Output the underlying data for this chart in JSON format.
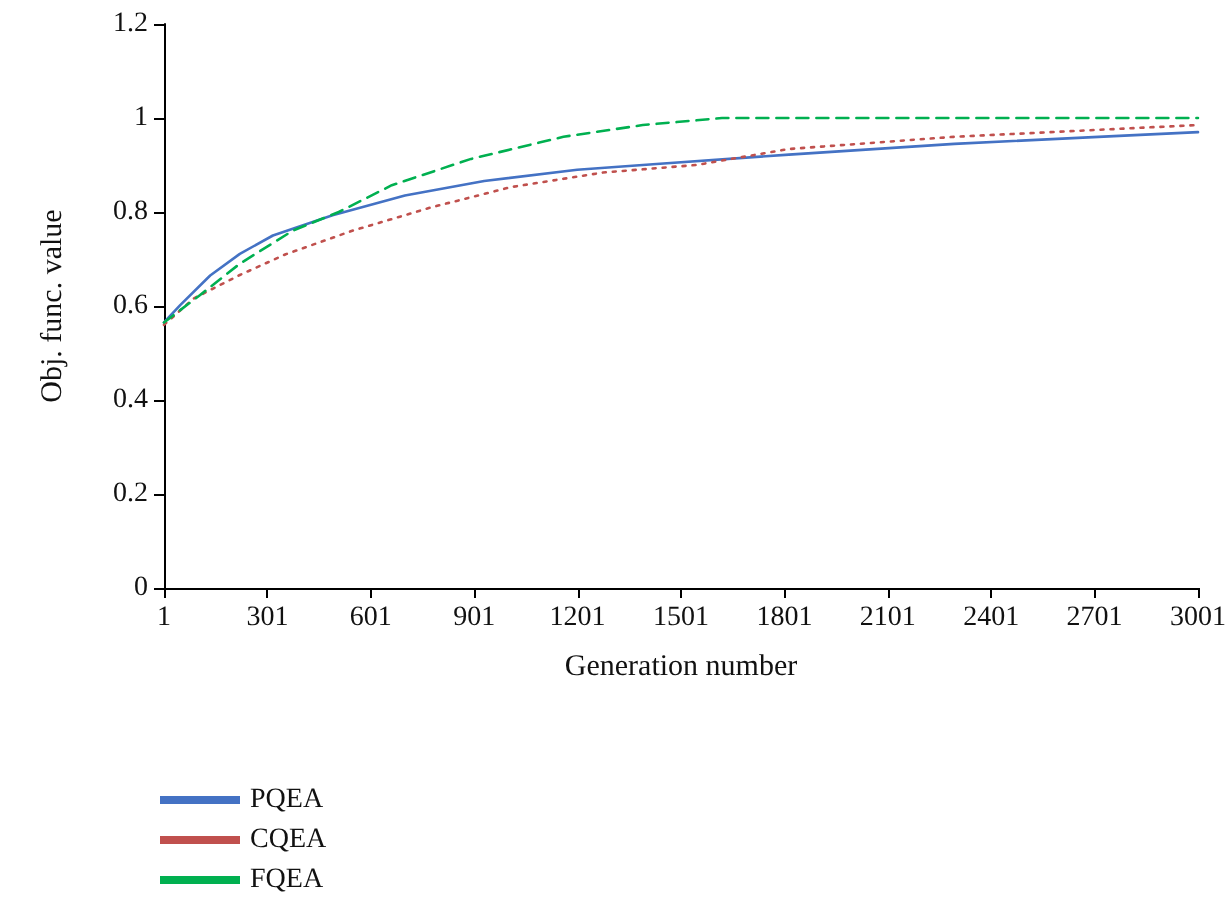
{
  "chart_data": {
    "type": "line",
    "xlabel": "Generation number",
    "ylabel": "Obj. func. value",
    "xlim": [
      1,
      3001
    ],
    "xticks": [
      1,
      301,
      601,
      901,
      1201,
      1501,
      1801,
      2101,
      2401,
      2701,
      3001
    ],
    "ylim": [
      0,
      1.2
    ],
    "yticks": [
      0,
      0.2,
      0.4,
      0.6,
      0.8,
      1,
      1.2
    ],
    "grid": false,
    "legend": "bottom left",
    "marker": "none",
    "series": [
      {
        "name": "PQEA",
        "color": "#4472c4",
        "line_style": "solid",
        "x": [
          1,
          48,
          135,
          221,
          317,
          490,
          700,
          930,
          1200,
          1430,
          1814,
          2294,
          2772,
          3001
        ],
        "values": [
          0.565,
          0.602,
          0.665,
          0.711,
          0.75,
          0.793,
          0.835,
          0.866,
          0.89,
          0.902,
          0.922,
          0.945,
          0.962,
          0.97
        ]
      },
      {
        "name": "CQEA",
        "color": "#c0504d",
        "line_style": "dotted",
        "x": [
          1,
          87,
          221,
          354,
          547,
          777,
          1008,
          1275,
          1545,
          1814,
          2294,
          2772,
          3001
        ],
        "values": [
          0.56,
          0.616,
          0.666,
          0.71,
          0.76,
          0.81,
          0.853,
          0.884,
          0.9,
          0.934,
          0.96,
          0.977,
          0.985
        ]
      },
      {
        "name": "FQEA",
        "color": "#00b050",
        "line_style": "dashed",
        "x": [
          1,
          105,
          221,
          374,
          508,
          662,
          892,
          1160,
          1390,
          1545,
          1620,
          3001
        ],
        "values": [
          0.565,
          0.623,
          0.69,
          0.76,
          0.8,
          0.857,
          0.913,
          0.96,
          0.985,
          0.995,
          1,
          1
        ]
      }
    ]
  }
}
